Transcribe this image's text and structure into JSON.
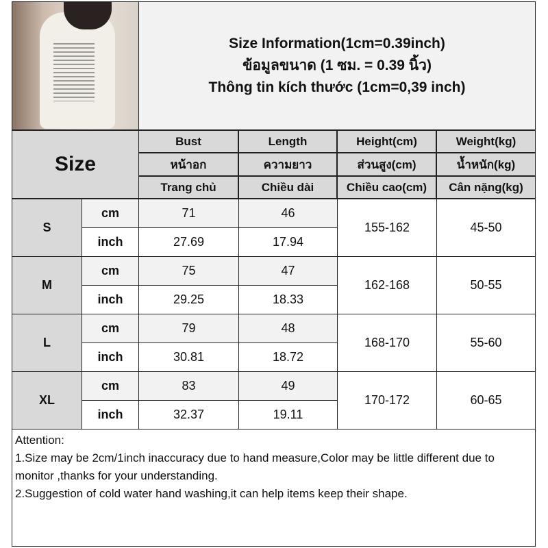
{
  "title": {
    "line1": "Size Information(1cm=0.39inch)",
    "line2": "ข้อมูลขนาด (1 ซม. = 0.39 นิ้ว)",
    "line3": "Thông tin kích thước (1cm=0,39 inch)"
  },
  "size_label": "Size",
  "headers": [
    {
      "en": "Bust",
      "th": "หน้าอก",
      "vi": "Trang chủ"
    },
    {
      "en": "Length",
      "th": "ความยาว",
      "vi": "Chiều dài"
    },
    {
      "en": "Height(cm)",
      "th": "ส่วนสูง(cm)",
      "vi": "Chiều cao(cm)"
    },
    {
      "en": "Weight(kg)",
      "th": "น้ำหนัก(kg)",
      "vi": "Cân nặng(kg)"
    }
  ],
  "units": {
    "cm": "cm",
    "inch": "inch"
  },
  "rows": [
    {
      "size": "S",
      "bust_cm": "71",
      "length_cm": "46",
      "bust_in": "27.69",
      "length_in": "17.94",
      "height": "155-162",
      "weight": "45-50"
    },
    {
      "size": "M",
      "bust_cm": "75",
      "length_cm": "47",
      "bust_in": "29.25",
      "length_in": "18.33",
      "height": "162-168",
      "weight": "50-55"
    },
    {
      "size": "L",
      "bust_cm": "79",
      "length_cm": "48",
      "bust_in": "30.81",
      "length_in": "18.72",
      "height": "168-170",
      "weight": "55-60"
    },
    {
      "size": "XL",
      "bust_cm": "83",
      "length_cm": "49",
      "bust_in": "32.37",
      "length_in": "19.11",
      "height": "170-172",
      "weight": "60-65"
    }
  ],
  "attention": {
    "heading": "Attention:",
    "note1": "1.Size may be 2cm/1inch inaccuracy due to hand measure,Color may be little different due to monitor ,thanks for your understanding.",
    "note2": "2.Suggestion of cold water hand washing,it can help items keep their shape."
  }
}
